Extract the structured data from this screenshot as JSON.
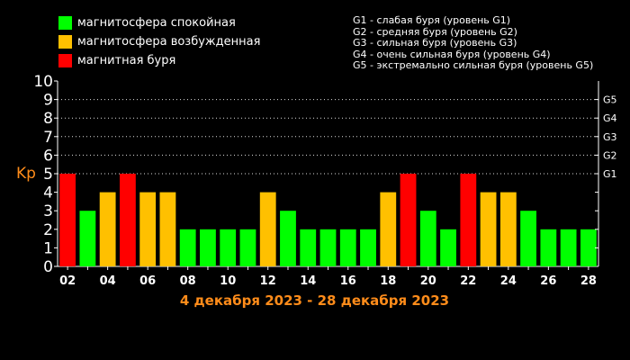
{
  "legend": [
    {
      "label": "магнитосфера спокойная",
      "color": "#00ff00"
    },
    {
      "label": "магнитосфера возбужденная",
      "color": "#ffc000"
    },
    {
      "label": "магнитная буря",
      "color": "#ff0000"
    }
  ],
  "g_legend": [
    "G1 - слабая буря (уровень G1)",
    "G2 - средняя буря (уровень G2)",
    "G3 - сильная буря (уровень G3)",
    "G4 - очень сильная буря (уровень G4)",
    "G5 - экстремально сильная буря (уровень G5)"
  ],
  "chart_data": {
    "type": "bar",
    "title": "4 декабря 2023 - 28 декабря 2023",
    "ylabel": "Kp",
    "ylim": [
      0,
      10
    ],
    "y_ticks": [
      "0",
      "1",
      "2",
      "3",
      "4",
      "5",
      "6",
      "7",
      "8",
      "9",
      "10"
    ],
    "right_axis_ticks": [
      {
        "label": "G1",
        "value": 5
      },
      {
        "label": "G2",
        "value": 6
      },
      {
        "label": "G3",
        "value": 7
      },
      {
        "label": "G4",
        "value": 8
      },
      {
        "label": "G5",
        "value": 9
      }
    ],
    "x_tick_labels": [
      "02",
      "04",
      "06",
      "08",
      "10",
      "12",
      "14",
      "16",
      "18",
      "20",
      "22",
      "24",
      "26",
      "28"
    ],
    "values": [
      5,
      3,
      4,
      5,
      4,
      4,
      2,
      2,
      2,
      2,
      4,
      3,
      2,
      2,
      2,
      2,
      4,
      5,
      3,
      2,
      5,
      4,
      4,
      3,
      2,
      2,
      2
    ],
    "colors": {
      "calm": "#00ff00",
      "active": "#ffc000",
      "storm": "#ff0000"
    },
    "axis_color": "#ffffff",
    "accent_color": "#ff8c1a"
  }
}
